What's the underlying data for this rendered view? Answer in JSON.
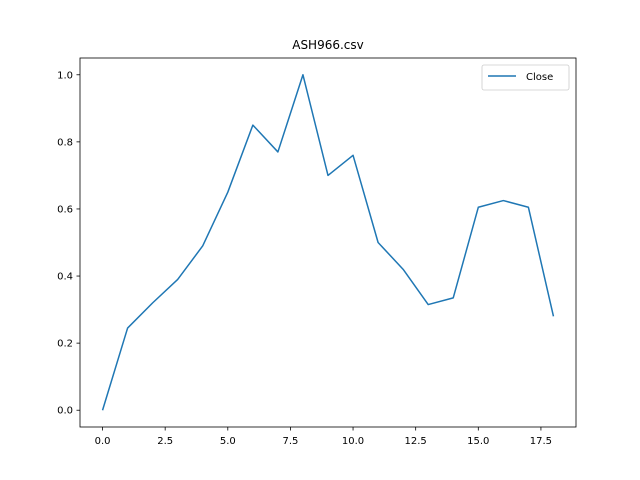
{
  "chart_data": {
    "type": "line",
    "title": "ASH966.csv",
    "xlabel": "",
    "ylabel": "",
    "xlim": [
      -0.9,
      18.9
    ],
    "ylim": [
      -0.05,
      1.05
    ],
    "x_ticks": [
      0.0,
      2.5,
      5.0,
      7.5,
      10.0,
      12.5,
      15.0,
      17.5
    ],
    "x_tick_labels": [
      "0.0",
      "2.5",
      "5.0",
      "7.5",
      "10.0",
      "12.5",
      "15.0",
      "17.5"
    ],
    "y_ticks": [
      0.0,
      0.2,
      0.4,
      0.6,
      0.8,
      1.0
    ],
    "y_tick_labels": [
      "0.0",
      "0.2",
      "0.4",
      "0.6",
      "0.8",
      "1.0"
    ],
    "grid": false,
    "legend_position": "top-right",
    "x": [
      0,
      1,
      2,
      3,
      4,
      5,
      6,
      7,
      8,
      9,
      10,
      11,
      12,
      13,
      14,
      15,
      16,
      17,
      18
    ],
    "series": [
      {
        "name": "Close",
        "color": "#1f77b4",
        "values": [
          0.0,
          0.245,
          0.32,
          0.39,
          0.49,
          0.65,
          0.85,
          0.77,
          1.0,
          0.7,
          0.76,
          0.5,
          0.42,
          0.315,
          0.335,
          0.605,
          0.625,
          0.605,
          0.28
        ]
      }
    ]
  }
}
